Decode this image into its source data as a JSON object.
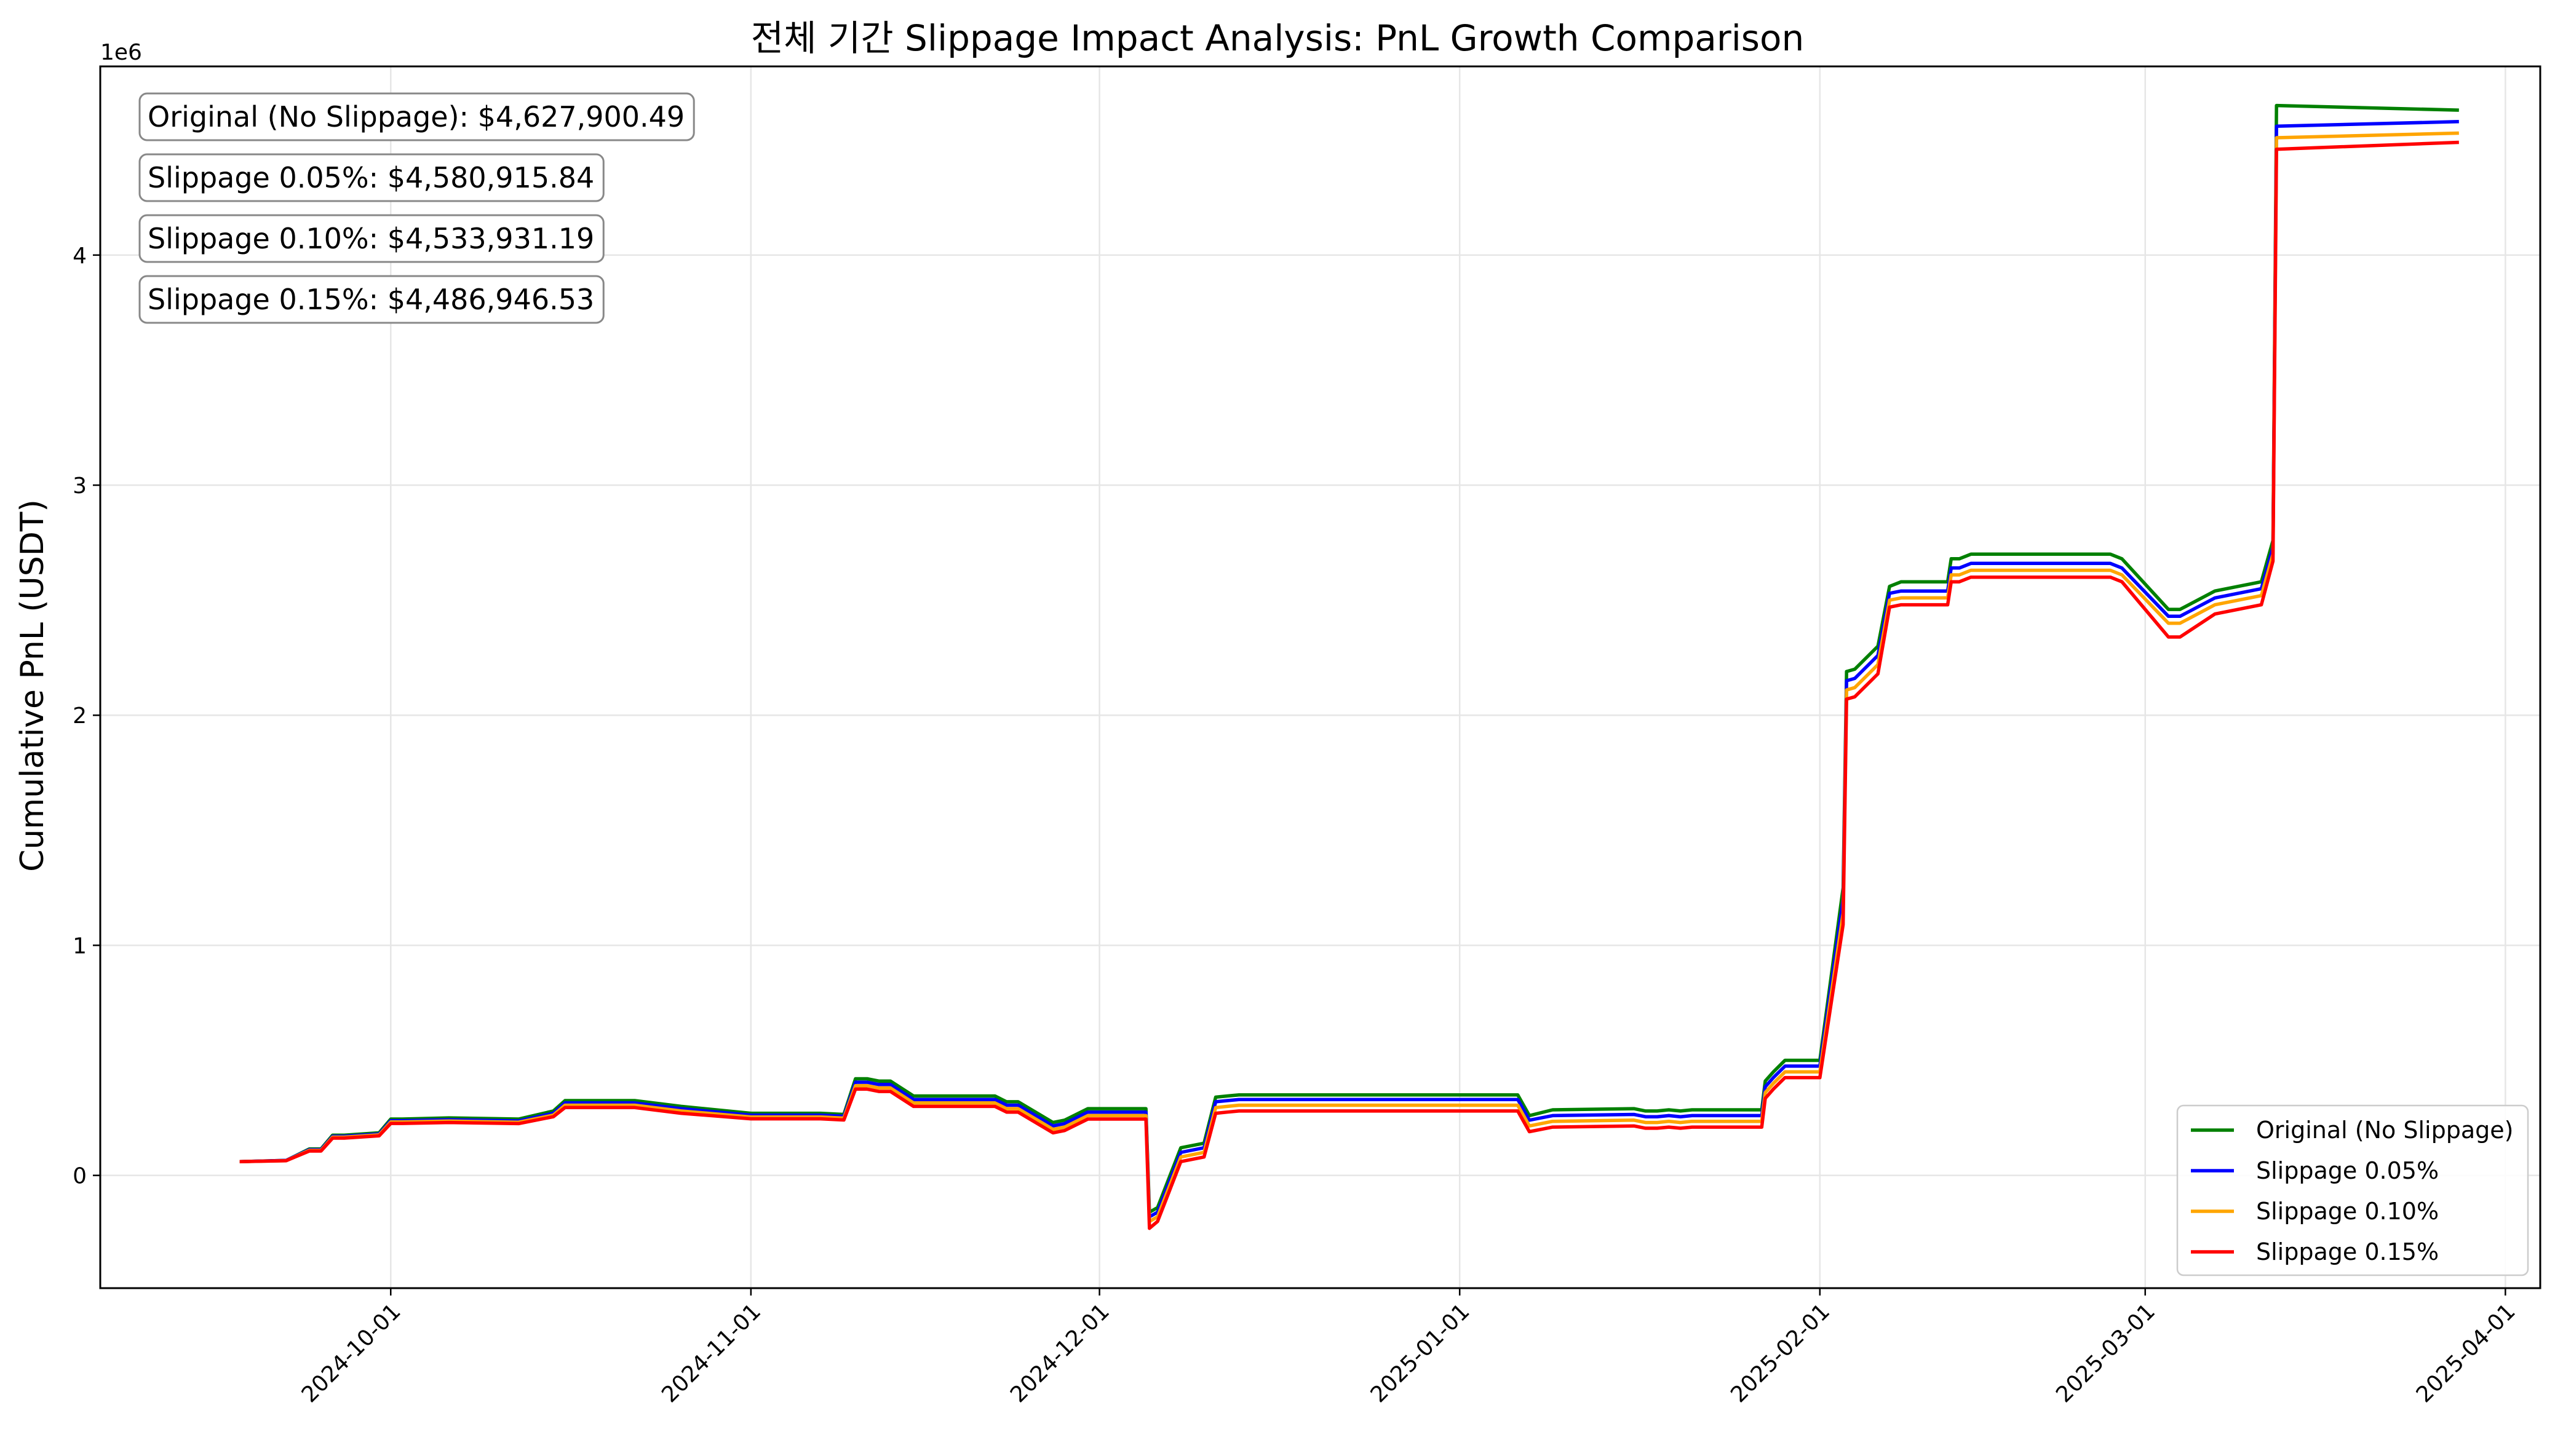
{
  "chart_data": {
    "type": "line",
    "title": "전체 기간 Slippage Impact Analysis: PnL Growth Comparison",
    "xlabel": "",
    "ylabel": "Cumulative PnL (USDT)",
    "y_offset_label": "1e6",
    "ylim": [
      -0.49,
      4.82
    ],
    "y_ticks": [
      0,
      1,
      2,
      3,
      4
    ],
    "xlim": [
      "2024-09-06",
      "2025-04-04"
    ],
    "x_ticks": [
      "2024-10-01",
      "2024-11-01",
      "2024-12-01",
      "2025-01-01",
      "2025-02-01",
      "2025-03-01",
      "2025-04-01"
    ],
    "grid": true,
    "legend_position": "lower right",
    "annotations": [
      "Original (No Slippage): $4,627,900.49",
      "Slippage 0.05%: $4,580,915.84",
      "Slippage 0.10%: $4,533,931.19",
      "Slippage 0.15%: $4,486,946.53"
    ],
    "x": [
      "2024-09-18",
      "2024-09-22",
      "2024-09-24",
      "2024-09-25",
      "2024-09-26",
      "2024-09-27",
      "2024-09-30",
      "2024-10-01",
      "2024-10-02",
      "2024-10-06",
      "2024-10-12",
      "2024-10-15",
      "2024-10-16",
      "2024-10-22",
      "2024-10-26",
      "2024-11-01",
      "2024-11-07",
      "2024-11-09",
      "2024-11-10",
      "2024-11-11",
      "2024-11-12",
      "2024-11-13",
      "2024-11-15",
      "2024-11-22",
      "2024-11-23",
      "2024-11-24",
      "2024-11-27",
      "2024-11-28",
      "2024-11-30",
      "2024-12-01",
      "2024-12-05",
      "2024-12-05b",
      "2024-12-06",
      "2024-12-08",
      "2024-12-10",
      "2024-12-11",
      "2024-12-12",
      "2024-12-13",
      "2024-12-15",
      "2024-12-26",
      "2025-01-06",
      "2025-01-07",
      "2025-01-09",
      "2025-01-16",
      "2025-01-17",
      "2025-01-18",
      "2025-01-19",
      "2025-01-20",
      "2025-01-21",
      "2025-01-27",
      "2025-01-27b",
      "2025-01-28",
      "2025-01-29",
      "2025-02-01",
      "2025-02-03",
      "2025-02-03b",
      "2025-02-04",
      "2025-02-06",
      "2025-02-07",
      "2025-02-08",
      "2025-02-12",
      "2025-02-12b",
      "2025-02-13",
      "2025-02-14",
      "2025-02-24",
      "2025-02-26",
      "2025-02-27",
      "2025-03-03",
      "2025-03-04",
      "2025-03-07",
      "2025-03-11",
      "2025-03-12",
      "2025-03-12b",
      "2025-03-28"
    ],
    "series": [
      {
        "name": "Original (No Slippage)",
        "color": "#008000",
        "values": [
          0.06,
          0.065,
          0.115,
          0.115,
          0.175,
          0.175,
          0.185,
          0.245,
          0.245,
          0.25,
          0.245,
          0.28,
          0.325,
          0.325,
          0.3,
          0.27,
          0.27,
          0.265,
          0.42,
          0.42,
          0.41,
          0.41,
          0.345,
          0.345,
          0.32,
          0.32,
          0.23,
          0.24,
          0.29,
          0.29,
          0.29,
          -0.16,
          -0.14,
          0.12,
          0.14,
          0.34,
          0.345,
          0.35,
          0.35,
          0.35,
          0.35,
          0.26,
          0.285,
          0.29,
          0.28,
          0.28,
          0.285,
          0.28,
          0.285,
          0.285,
          0.41,
          0.45,
          0.5,
          0.5,
          1.25,
          2.19,
          2.2,
          2.3,
          2.56,
          2.58,
          2.58,
          2.68,
          2.68,
          2.7,
          2.7,
          2.7,
          2.68,
          2.46,
          2.46,
          2.54,
          2.58,
          2.76,
          4.65,
          4.63
        ]
      },
      {
        "name": "Slippage 0.05%",
        "color": "#0000ff",
        "values": [
          0.06,
          0.065,
          0.112,
          0.112,
          0.17,
          0.17,
          0.18,
          0.238,
          0.238,
          0.242,
          0.237,
          0.27,
          0.315,
          0.315,
          0.29,
          0.262,
          0.262,
          0.257,
          0.405,
          0.405,
          0.395,
          0.395,
          0.33,
          0.33,
          0.305,
          0.305,
          0.215,
          0.225,
          0.275,
          0.275,
          0.275,
          -0.18,
          -0.16,
          0.1,
          0.12,
          0.32,
          0.325,
          0.33,
          0.33,
          0.33,
          0.33,
          0.24,
          0.26,
          0.265,
          0.255,
          0.255,
          0.26,
          0.255,
          0.26,
          0.26,
          0.385,
          0.425,
          0.475,
          0.475,
          1.2,
          2.15,
          2.16,
          2.26,
          2.53,
          2.54,
          2.54,
          2.64,
          2.64,
          2.66,
          2.66,
          2.66,
          2.64,
          2.43,
          2.43,
          2.51,
          2.55,
          2.73,
          4.56,
          4.58
        ]
      },
      {
        "name": "Slippage 0.10%",
        "color": "#ffa500",
        "values": [
          0.06,
          0.064,
          0.109,
          0.109,
          0.166,
          0.166,
          0.176,
          0.232,
          0.232,
          0.236,
          0.231,
          0.262,
          0.305,
          0.305,
          0.28,
          0.254,
          0.254,
          0.249,
          0.39,
          0.39,
          0.38,
          0.38,
          0.315,
          0.315,
          0.29,
          0.29,
          0.2,
          0.21,
          0.26,
          0.26,
          0.26,
          -0.2,
          -0.18,
          0.08,
          0.1,
          0.295,
          0.3,
          0.305,
          0.305,
          0.305,
          0.305,
          0.215,
          0.235,
          0.24,
          0.23,
          0.23,
          0.235,
          0.23,
          0.235,
          0.235,
          0.36,
          0.4,
          0.45,
          0.45,
          1.14,
          2.11,
          2.12,
          2.22,
          2.5,
          2.51,
          2.51,
          2.61,
          2.61,
          2.63,
          2.63,
          2.63,
          2.61,
          2.4,
          2.4,
          2.48,
          2.52,
          2.7,
          4.51,
          4.53
        ]
      },
      {
        "name": "Slippage 0.15%",
        "color": "#ff0000",
        "values": [
          0.06,
          0.064,
          0.106,
          0.106,
          0.162,
          0.162,
          0.172,
          0.226,
          0.226,
          0.23,
          0.225,
          0.255,
          0.295,
          0.295,
          0.27,
          0.246,
          0.246,
          0.241,
          0.375,
          0.375,
          0.365,
          0.365,
          0.3,
          0.3,
          0.275,
          0.275,
          0.185,
          0.195,
          0.245,
          0.245,
          0.245,
          -0.23,
          -0.2,
          0.06,
          0.08,
          0.27,
          0.275,
          0.28,
          0.28,
          0.28,
          0.28,
          0.19,
          0.21,
          0.215,
          0.205,
          0.205,
          0.21,
          0.205,
          0.21,
          0.21,
          0.335,
          0.375,
          0.425,
          0.425,
          1.09,
          2.07,
          2.08,
          2.18,
          2.47,
          2.48,
          2.48,
          2.58,
          2.58,
          2.6,
          2.6,
          2.6,
          2.58,
          2.34,
          2.34,
          2.44,
          2.48,
          2.67,
          4.46,
          4.49
        ]
      }
    ]
  }
}
